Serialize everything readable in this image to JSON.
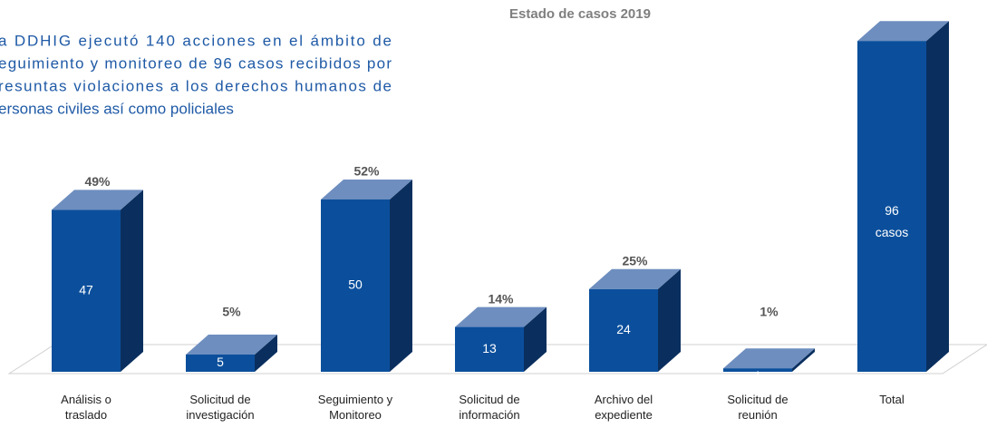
{
  "chart_data": {
    "type": "bar3d",
    "title": "Estado de casos 2019",
    "annotation_lines": [
      "a DDHIG ejecutó 140 acciones en el ámbito de",
      "eguimiento y monitoreo de 96 casos recibidos por",
      "resuntas violaciones a los derechos humanos de",
      "ersonas civiles así como policiales"
    ],
    "categories": [
      "Análisis o traslado",
      "Solicitud de investigación",
      "Seguimiento y Monitoreo",
      "Solicitud de información",
      "Archivo del expediente",
      "Solicitud de reunión",
      "Total"
    ],
    "values": [
      47,
      5,
      50,
      13,
      24,
      1,
      96
    ],
    "value_labels": [
      "47",
      "5",
      "50",
      "13",
      "24",
      "1",
      "96 casos"
    ],
    "percent_labels": [
      "49%",
      "5%",
      "52%",
      "14%",
      "25%",
      "1%",
      null
    ],
    "color": "#0b4f9c",
    "ylim": [
      0,
      100
    ]
  }
}
